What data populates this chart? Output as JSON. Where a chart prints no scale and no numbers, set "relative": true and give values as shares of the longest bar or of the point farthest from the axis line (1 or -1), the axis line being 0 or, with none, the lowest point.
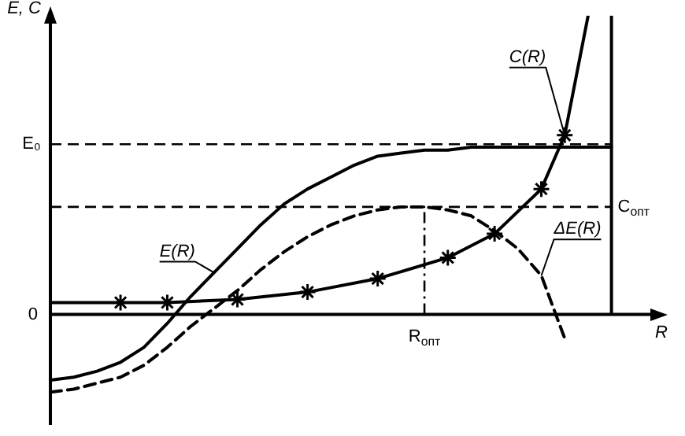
{
  "chart_data": {
    "type": "line",
    "xlabel": "R",
    "ylabel": "E, C",
    "relative": true,
    "grid": false,
    "legend": false,
    "categories": [
      null,
      null,
      null,
      null,
      null,
      null,
      null,
      null,
      null,
      null,
      null,
      null,
      null,
      null,
      null,
      null,
      null,
      null,
      null,
      null,
      null,
      null,
      null,
      null,
      null,
      null,
      null
    ],
    "series": [
      {
        "name": "E(R)",
        "color": "#000000",
        "line_style": "solid",
        "marker": "none",
        "values": [
          -0.22,
          -0.21,
          -0.19,
          -0.16,
          -0.11,
          -0.03,
          0.06,
          0.14,
          0.22,
          0.3,
          0.37,
          0.42,
          0.46,
          0.5,
          0.53,
          0.54,
          0.55,
          0.55,
          0.56,
          0.56,
          0.56,
          0.56,
          0.56,
          0.56,
          0.56,
          null,
          null
        ]
      },
      {
        "name": "ΔE(R)",
        "color": "#000000",
        "line_style": "dashed",
        "marker": "none",
        "values": [
          -0.26,
          -0.25,
          -0.23,
          -0.21,
          -0.17,
          -0.11,
          -0.04,
          0.02,
          0.08,
          0.15,
          0.21,
          0.26,
          0.3,
          0.33,
          0.35,
          0.36,
          0.36,
          0.35,
          0.33,
          0.28,
          0.22,
          0.13,
          -0.08,
          null,
          null,
          null,
          null
        ]
      },
      {
        "name": "C(R)",
        "color": "#000000",
        "line_style": "solid",
        "marker": "cross",
        "values": [
          0.04,
          null,
          null,
          0.04,
          null,
          0.04,
          null,
          null,
          0.05,
          null,
          null,
          0.075,
          null,
          null,
          0.12,
          null,
          null,
          0.19,
          null,
          0.27,
          null,
          0.42,
          0.6,
          1,
          null,
          null,
          null
        ]
      }
    ],
    "ref_lines": [
      {
        "axis": "y",
        "value": 0.57,
        "label": "E₀",
        "line_style": "dashed"
      },
      {
        "axis": "y",
        "value": 0.36,
        "label": "C$_{опт}$",
        "line_style": "dashed"
      }
    ],
    "annotations": [
      "0",
      "R$_{опт}$"
    ]
  }
}
